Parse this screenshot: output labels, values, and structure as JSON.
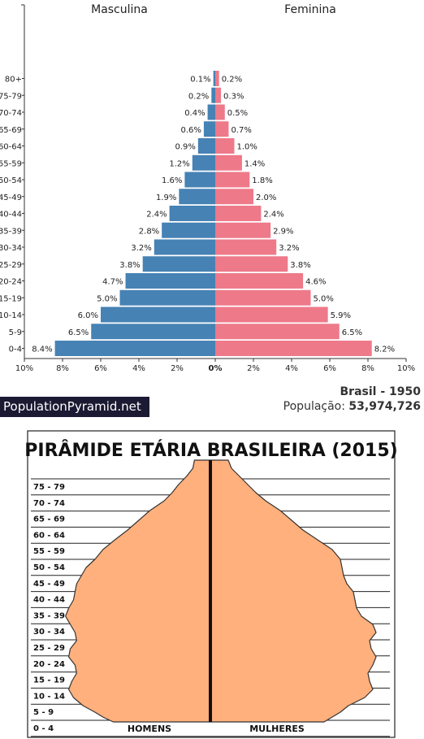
{
  "chart_data": [
    {
      "type": "bar",
      "orientation": "horizontal",
      "left_label": "Masculina",
      "right_label": "Feminina",
      "categories": [
        "80+",
        "75-79",
        "70-74",
        "65-69",
        "60-64",
        "55-59",
        "50-54",
        "45-49",
        "40-44",
        "35-39",
        "30-34",
        "25-29",
        "20-24",
        "15-19",
        "10-14",
        "5-9",
        "0-4"
      ],
      "series": [
        {
          "name": "Masculina",
          "color": "#4682b4",
          "values": [
            0.1,
            0.2,
            0.4,
            0.6,
            0.9,
            1.2,
            1.6,
            1.9,
            2.4,
            2.8,
            3.2,
            3.8,
            4.7,
            5.0,
            6.0,
            6.5,
            8.4
          ]
        },
        {
          "name": "Feminina",
          "color": "#ee7989",
          "values": [
            0.2,
            0.3,
            0.5,
            0.7,
            1.0,
            1.4,
            1.8,
            2.0,
            2.4,
            2.9,
            3.2,
            3.8,
            4.6,
            5.0,
            5.9,
            6.5,
            8.2
          ]
        }
      ],
      "value_labels_left": [
        "0.1%",
        "0.2%",
        "0.4%",
        "0.6%",
        "0.9%",
        "1.2%",
        "1.6%",
        "1.9%",
        "2.4%",
        "2.8%",
        "3.2%",
        "3.8%",
        "4.7%",
        "5.0%",
        "6.0%",
        "6.5%",
        "8.4%"
      ],
      "value_labels_right": [
        "0.2%",
        "0.3%",
        "0.5%",
        "0.7%",
        "1.0%",
        "1.4%",
        "1.8%",
        "2.0%",
        "2.4%",
        "2.9%",
        "3.2%",
        "3.8%",
        "4.6%",
        "5.0%",
        "5.9%",
        "6.5%",
        "8.2%"
      ],
      "xlim": [
        -10,
        10
      ],
      "xtick_labels_left": [
        "10%",
        "8%",
        "6%",
        "4%",
        "2%"
      ],
      "xtick_labels_right": [
        "2%",
        "4%",
        "6%",
        "8%",
        "10%"
      ],
      "xtick_center": "0%",
      "brand": "PopulationPyramid.net",
      "country_year": "Brasil - 1950",
      "population_label": "População:",
      "population_value": "53,974,726"
    },
    {
      "type": "area",
      "title": "PIRÂMIDE ETÁRIA BRASILEIRA (2015)",
      "categories": [
        "75 - 79",
        "70 - 74",
        "65 - 69",
        "60 - 64",
        "55 - 59",
        "50 - 54",
        "45 - 49",
        "40 - 44",
        "35 - 39",
        "30 - 34",
        "25 - 29",
        "20 - 24",
        "15 - 19",
        "10 - 14",
        "5 - 9",
        "0 - 4"
      ],
      "left_label": "HOMENS",
      "right_label": "MULHERES",
      "fill_color": "#ffb07c",
      "outline_shape": "pyramid narrowing toward older age groups; widest at 25 - 34, slightly narrower at the base"
    }
  ]
}
